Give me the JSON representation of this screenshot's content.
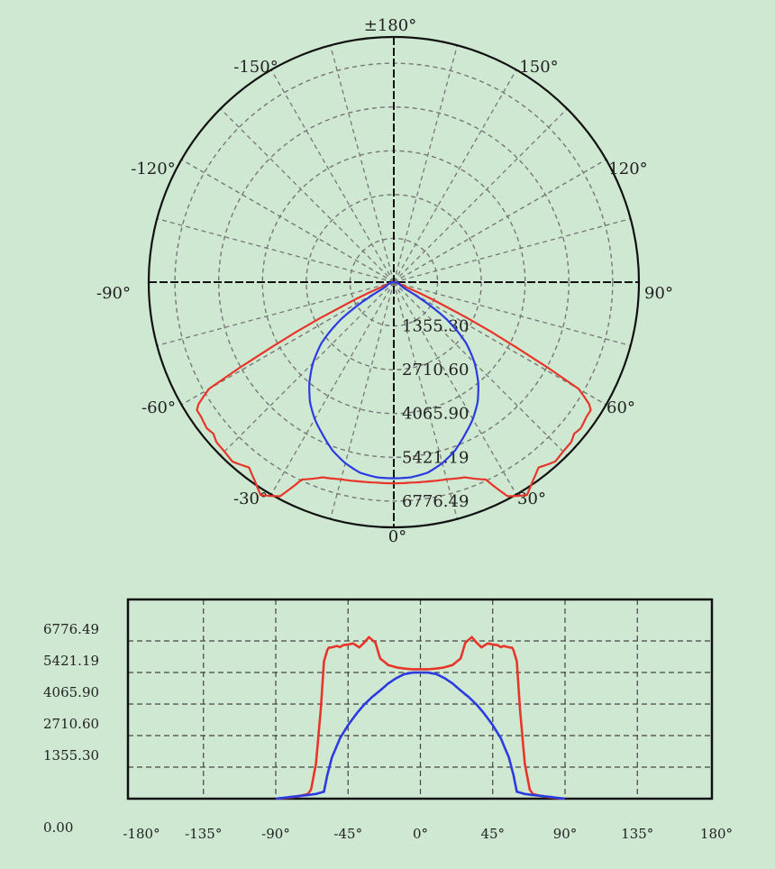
{
  "colors": {
    "background": "#cfe8d2",
    "frame": "#111111",
    "grid": "#777777",
    "series_c0": "#e8352a",
    "series_c90": "#2b3be0"
  },
  "chart_data": [
    {
      "type": "line",
      "subtype": "polar",
      "angle_labels": [
        "±180°",
        "-150°",
        "150°",
        "-120°",
        "120°",
        "-90°",
        "90°",
        "-60°",
        "60°",
        "-30°",
        "30°",
        "0°"
      ],
      "radial_ticks": [
        "1355.30",
        "2710.60",
        "4065.90",
        "5421.19",
        "6776.49"
      ],
      "r_max": 6776.49,
      "grid": true,
      "series": [
        {
          "color": "#e8352a",
          "angles": [
            0,
            5,
            10,
            15,
            20,
            25,
            28,
            32,
            35,
            38,
            42,
            45,
            48,
            50,
            52,
            55,
            57,
            58,
            60,
            62,
            65,
            68,
            70,
            75,
            80,
            85,
            90
          ],
          "values": [
            5560,
            5560,
            5590,
            5640,
            5740,
            6020,
            6700,
            6940,
            6700,
            6500,
            6670,
            6620,
            6600,
            6510,
            6560,
            6500,
            6490,
            6370,
            5900,
            3800,
            1500,
            400,
            200,
            120,
            60,
            30,
            0
          ]
        },
        {
          "color": "#2b3be0",
          "angles": [
            0,
            5,
            10,
            15,
            20,
            25,
            30,
            35,
            40,
            45,
            50,
            55,
            58,
            60,
            65,
            70,
            75,
            80,
            85,
            90
          ],
          "values": [
            5421,
            5415,
            5350,
            5180,
            4950,
            4650,
            4370,
            4040,
            3630,
            3160,
            2600,
            1780,
            1000,
            300,
            200,
            160,
            120,
            80,
            40,
            0
          ]
        }
      ]
    },
    {
      "type": "line",
      "x_tick_labels": [
        "-180°",
        "-135°",
        "-90°",
        "-45°",
        "0°",
        "45°",
        "90°",
        "135°",
        "180°"
      ],
      "y_tick_labels": [
        "0.00",
        "1355.30",
        "2710.60",
        "4065.90",
        "5421.19",
        "6776.49"
      ],
      "xlim": [
        -180,
        180
      ],
      "ylim": [
        0,
        6776.49
      ],
      "grid": true,
      "series_ref": "same series as polar chart, mirrored about 0°"
    }
  ]
}
